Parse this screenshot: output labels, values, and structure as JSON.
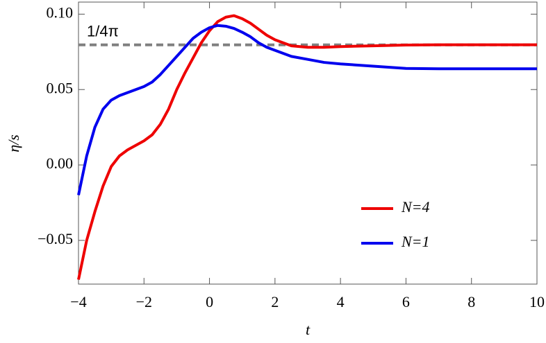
{
  "chart_data": {
    "type": "line",
    "x_label": "t",
    "y_label": "η/s",
    "x": [
      -4,
      -3.75,
      -3.5,
      -3.25,
      -3,
      -2.75,
      -2.5,
      -2.25,
      -2,
      -1.75,
      -1.5,
      -1.25,
      -1,
      -0.75,
      -0.5,
      -0.25,
      0,
      0.25,
      0.5,
      0.75,
      1,
      1.25,
      1.5,
      1.75,
      2,
      2.5,
      3,
      3.5,
      4,
      5,
      6,
      7,
      8,
      9,
      10
    ],
    "series": [
      {
        "name": "N=4",
        "color": "#ee0000",
        "values": [
          -0.076,
          -0.05,
          -0.031,
          -0.014,
          -0.001,
          0.006,
          0.01,
          0.013,
          0.016,
          0.02,
          0.027,
          0.037,
          0.05,
          0.061,
          0.071,
          0.081,
          0.089,
          0.095,
          0.098,
          0.099,
          0.097,
          0.094,
          0.09,
          0.086,
          0.083,
          0.079,
          0.078,
          0.078,
          0.0785,
          0.079,
          0.0795,
          0.0797,
          0.0797,
          0.0797,
          0.0797
        ]
      },
      {
        "name": "N=1",
        "color": "#0000ee",
        "values": [
          -0.02,
          0.006,
          0.025,
          0.037,
          0.043,
          0.046,
          0.048,
          0.05,
          0.052,
          0.055,
          0.06,
          0.066,
          0.072,
          0.078,
          0.084,
          0.088,
          0.091,
          0.0925,
          0.092,
          0.0905,
          0.088,
          0.085,
          0.081,
          0.078,
          0.076,
          0.072,
          0.07,
          0.068,
          0.067,
          0.0655,
          0.064,
          0.0638,
          0.0638,
          0.0638,
          0.0638
        ]
      }
    ],
    "reference_line": {
      "value": 0.0796,
      "label": "1/4π",
      "color": "#808080"
    },
    "xlim": [
      -4,
      10
    ],
    "ylim": [
      -0.079,
      0.108
    ],
    "xticks": [
      {
        "value": -4,
        "label": "−4"
      },
      {
        "value": -2,
        "label": "−2"
      },
      0,
      2,
      4,
      6,
      8,
      10
    ],
    "yticks": [
      {
        "value": -0.05,
        "label": "−0.05"
      },
      {
        "value": 0,
        "label": "0.00"
      },
      0.05,
      {
        "value": 0.1,
        "label": "0.10"
      }
    ],
    "legend": "lower right"
  }
}
